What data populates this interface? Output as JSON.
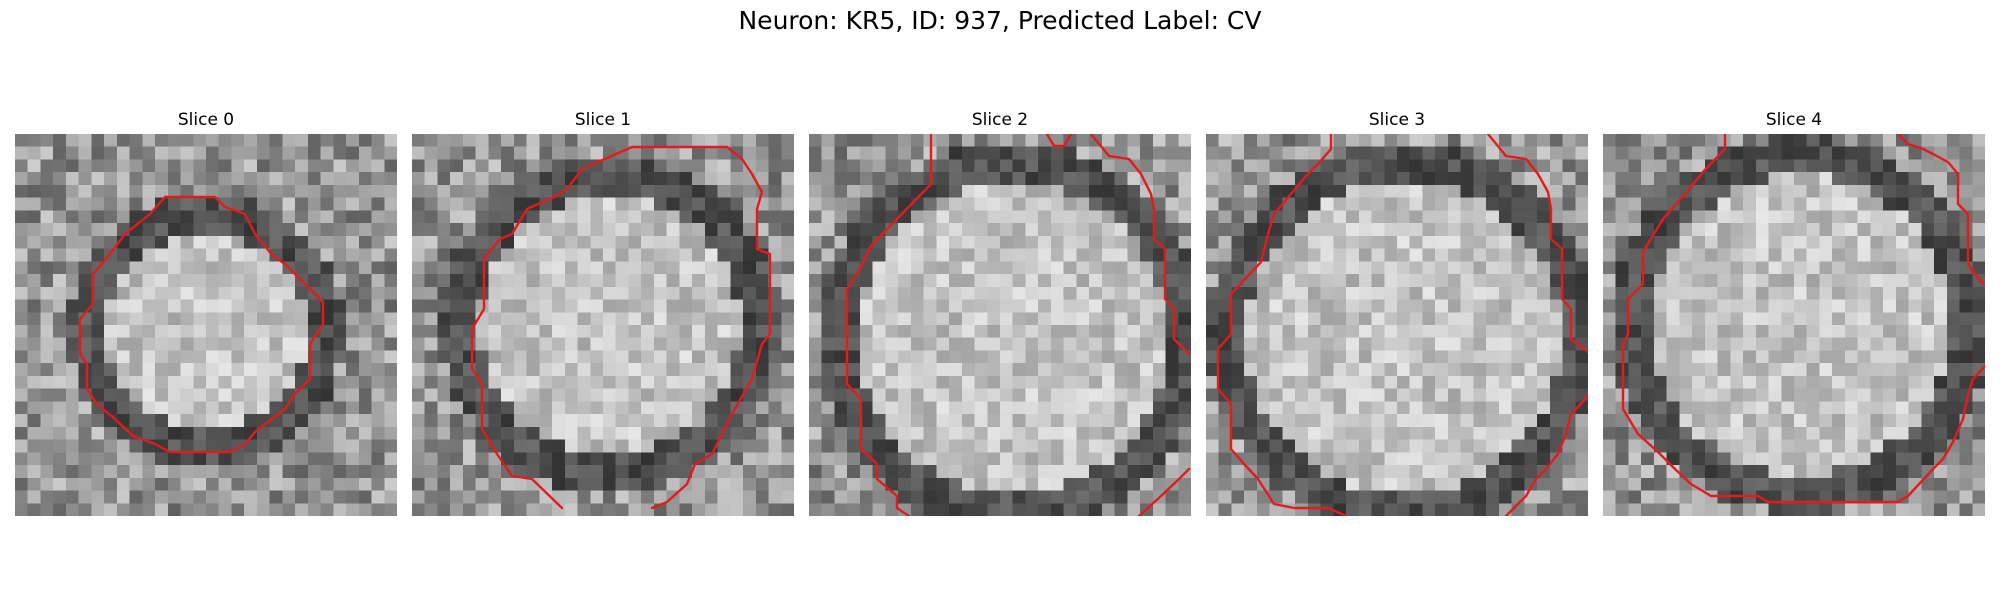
{
  "figure": {
    "title": "Neuron: KR5, ID: 937, Predicted Label: CV",
    "contour_color": "#e41a1c"
  },
  "panels": [
    {
      "title": "Slice 0",
      "image": "grayscale microscopy crop of a round cell body with dark membrane ring"
    },
    {
      "title": "Slice 1",
      "image": "grayscale microscopy crop of a round cell body with dark membrane ring"
    },
    {
      "title": "Slice 2",
      "image": "grayscale microscopy crop of a round cell body with dark membrane ring"
    },
    {
      "title": "Slice 3",
      "image": "grayscale microscopy crop of a round cell body with dark membrane ring"
    },
    {
      "title": "Slice 4",
      "image": "grayscale microscopy crop of a round cell body with dark membrane ring"
    }
  ]
}
